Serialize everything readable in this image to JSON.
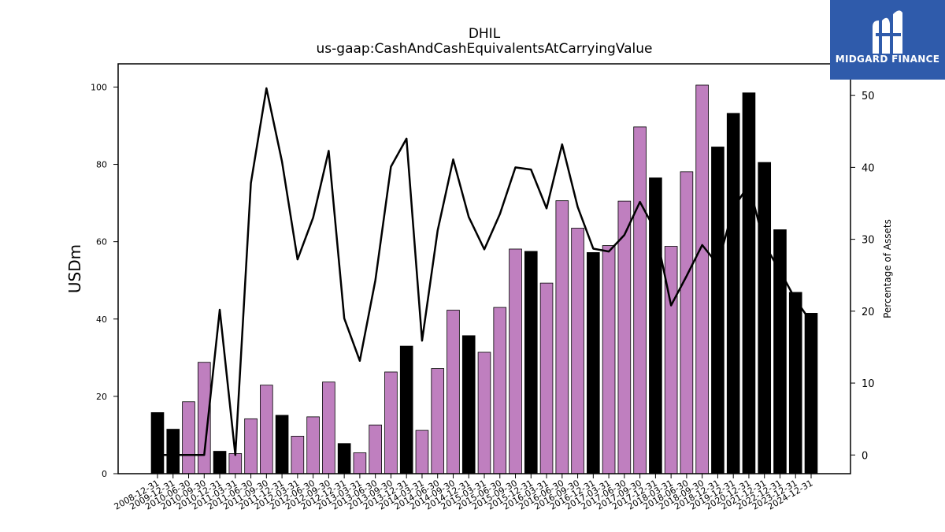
{
  "chart_data": {
    "type": "bar",
    "title": "DHIL",
    "subtitle": "us-gaap:CashAndCashEquivalentsAtCarryingValue",
    "ylabel": "USDm",
    "y2label": "Percentage of Assets",
    "ylim": [
      0,
      106
    ],
    "y2lim": [
      -2.6,
      54.4
    ],
    "yticks": [
      0,
      20,
      40,
      60,
      80,
      100
    ],
    "y2ticks": [
      0,
      10,
      20,
      30,
      40,
      50
    ],
    "categories": [
      "2008-12-31",
      "2009-12-31",
      "2010-06-30",
      "2010-09-30",
      "2010-12-31",
      "2011-03-31",
      "2011-06-30",
      "2011-09-30",
      "2011-12-31",
      "2012-03-31",
      "2012-06-30",
      "2012-09-30",
      "2012-12-31",
      "2013-03-31",
      "2013-06-30",
      "2013-09-30",
      "2013-12-31",
      "2014-03-31",
      "2014-06-30",
      "2014-09-30",
      "2014-12-31",
      "2015-03-31",
      "2015-06-30",
      "2015-09-30",
      "2015-12-31",
      "2016-03-31",
      "2016-06-30",
      "2016-09-30",
      "2016-12-31",
      "2017-03-31",
      "2017-06-30",
      "2017-09-30",
      "2017-12-31",
      "2018-03-31",
      "2018-06-30",
      "2018-09-30",
      "2018-12-31",
      "2019-12-31",
      "2020-12-31",
      "2021-12-31",
      "2022-12-31",
      "2023-12-31",
      "2024-12-31"
    ],
    "series": [
      {
        "type": "bar",
        "values": [
          15.8,
          11.5,
          18.6,
          28.8,
          5.8,
          5.2,
          14.2,
          22.9,
          15.1,
          9.7,
          14.7,
          23.7,
          7.8,
          5.4,
          12.6,
          26.3,
          33.0,
          11.2,
          27.2,
          42.3,
          35.7,
          31.4,
          43.0,
          58.1,
          57.5,
          49.3,
          70.6,
          63.5,
          57.2,
          59.0,
          70.5,
          89.7,
          76.5,
          58.8,
          78.1,
          100.5,
          84.5,
          93.2,
          98.5,
          80.5,
          63.1,
          46.9,
          41.5
        ],
        "colors": [
          "#000000",
          "#000000",
          "#bf7fbf",
          "#bf7fbf",
          "#000000",
          "#bf7fbf",
          "#bf7fbf",
          "#bf7fbf",
          "#000000",
          "#bf7fbf",
          "#bf7fbf",
          "#bf7fbf",
          "#000000",
          "#bf7fbf",
          "#bf7fbf",
          "#bf7fbf",
          "#000000",
          "#bf7fbf",
          "#bf7fbf",
          "#bf7fbf",
          "#000000",
          "#bf7fbf",
          "#bf7fbf",
          "#bf7fbf",
          "#000000",
          "#bf7fbf",
          "#bf7fbf",
          "#bf7fbf",
          "#000000",
          "#bf7fbf",
          "#bf7fbf",
          "#bf7fbf",
          "#000000",
          "#bf7fbf",
          "#bf7fbf",
          "#bf7fbf",
          "#000000",
          "#000000",
          "#000000",
          "#000000",
          "#000000",
          "#000000",
          "#000000"
        ]
      },
      {
        "type": "line",
        "axis": "right",
        "color": "#000000",
        "values": [
          0.0,
          0.0,
          0.0,
          0.0,
          20.2,
          0.0,
          37.8,
          51.0,
          40.8,
          27.2,
          33.0,
          42.3,
          19.0,
          13.1,
          24.3,
          40.1,
          44.0,
          15.9,
          31.2,
          41.1,
          33.1,
          28.6,
          33.5,
          40.0,
          39.7,
          34.3,
          43.2,
          34.5,
          28.7,
          28.3,
          30.6,
          35.2,
          31.2,
          20.8,
          24.9,
          29.2,
          26.5,
          34.3,
          37.6,
          29.3,
          25.6,
          21.6,
          18.5
        ]
      }
    ]
  },
  "logo": {
    "text": "MIDGARD FINANCE"
  },
  "colors": {
    "annual_bar": "#000000",
    "quarterly_bar": "#bf7fbf",
    "logo_bg": "#2f5bab"
  }
}
